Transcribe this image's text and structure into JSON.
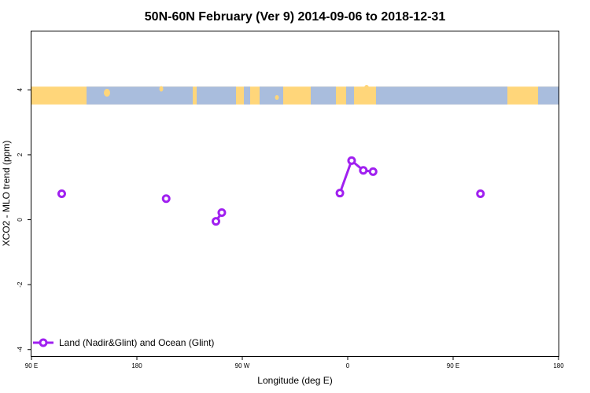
{
  "chart_data": {
    "type": "line",
    "title": "50N-60N February (Ver 9)   2014-09-06 to 2018-12-31",
    "xlabel": "Longitude (deg E)",
    "ylabel": "XCO2 - MLO trend (ppm)",
    "xlim": [
      -90,
      180
    ],
    "ylim": [
      -4.2,
      5.8
    ],
    "x_ticks": [
      {
        "value": -90,
        "label": "90 E"
      },
      {
        "value": -36,
        "label": "180"
      },
      {
        "value": 18,
        "label": "90 W"
      },
      {
        "value": 72,
        "label": "0"
      },
      {
        "value": 126,
        "label": "90 E"
      },
      {
        "value": 180,
        "label": "180"
      }
    ],
    "y_ticks": [
      {
        "value": -4,
        "label": "-4"
      },
      {
        "value": -2,
        "label": "-2"
      },
      {
        "value": 0,
        "label": "0"
      },
      {
        "value": 2,
        "label": "2"
      },
      {
        "value": 4,
        "label": "4"
      }
    ],
    "map_band": {
      "y_range": [
        3.55,
        4.1
      ],
      "land_color": "#ffd67a",
      "ocean_color": "#a9bddd"
    },
    "series": [
      {
        "name": "Land (Nadir&Glint) and Ocean (Glint)",
        "color": "#a020f0",
        "points": [
          {
            "x": -74.5,
            "y": 0.8
          },
          {
            "x": -21,
            "y": 0.65
          },
          {
            "x": 4.5,
            "y": -0.05
          },
          {
            "x": 7.5,
            "y": 0.22
          },
          {
            "x": 68,
            "y": 0.82
          },
          {
            "x": 74,
            "y": 1.82
          },
          {
            "x": 80,
            "y": 1.52
          },
          {
            "x": 85,
            "y": 1.48
          },
          {
            "x": 140,
            "y": 0.8
          }
        ],
        "segments": [
          [
            4,
            5,
            6,
            7
          ],
          [
            2,
            3
          ]
        ]
      }
    ],
    "legend": {
      "position": "bottom-left"
    }
  }
}
